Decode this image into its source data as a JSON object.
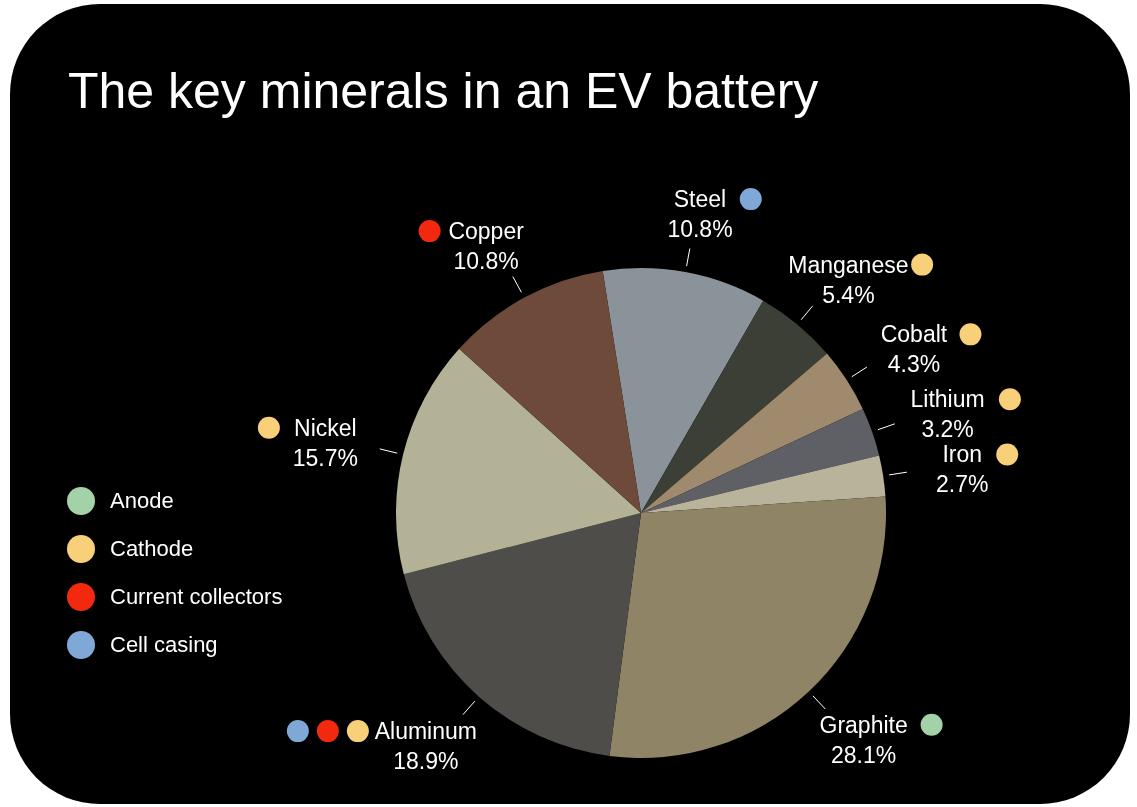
{
  "chart_data": {
    "type": "pie",
    "title": "The key minerals in an EV battery",
    "categories": [
      "Steel",
      "Manganese",
      "Cobalt",
      "Lithium",
      "Iron",
      "Graphite",
      "Aluminum",
      "Nickel",
      "Copper"
    ],
    "values": [
      10.8,
      5.4,
      4.3,
      3.2,
      2.7,
      28.1,
      18.9,
      15.7,
      10.8
    ],
    "value_labels": [
      "10.8%",
      "5.4%",
      "4.3%",
      "3.2%",
      "2.7%",
      "28.1%",
      "18.9%",
      "15.7%",
      "10.8%"
    ],
    "colors": [
      "#8a9399",
      "#3c3f36",
      "#a08a6e",
      "#5f5f66",
      "#b8b39a",
      "#8f8466",
      "#4f4d4a",
      "#b3b196",
      "#6e4a3a"
    ],
    "annotations": [
      "Anode",
      "Cathode",
      "Current collectors",
      "Cell casing"
    ]
  }
}
